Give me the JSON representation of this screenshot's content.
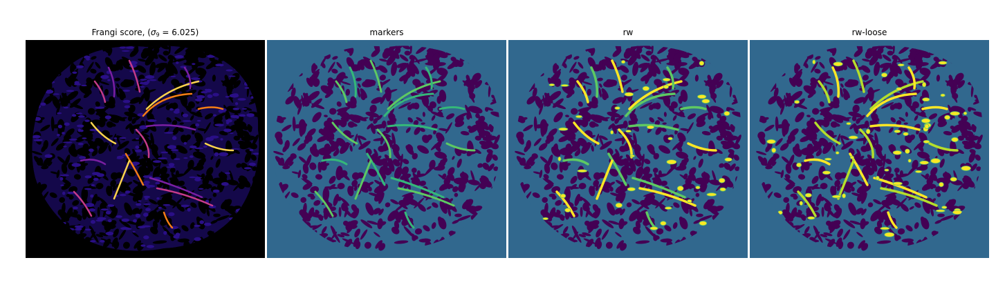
{
  "figure": {
    "panels": [
      {
        "id": "frangi",
        "title_prefix": "Frangi score, (",
        "title_sigma": "σ",
        "title_sub": "9",
        "title_suffix": " = 6.025)",
        "background": "#000000",
        "blob_fill": "#2a0f87",
        "vessel_colors": [
          "#7a1fa2",
          "#c53b8a",
          "#f57d15",
          "#fcd34d"
        ]
      },
      {
        "id": "markers",
        "title": "markers",
        "background": "#31688e",
        "blob_fill": "#440154",
        "vessel_colors": [
          "#35b779",
          "#5ec962"
        ]
      },
      {
        "id": "rw",
        "title": "rw",
        "background": "#31688e",
        "blob_fill": "#440154",
        "vessel_colors": [
          "#5ec962",
          "#fde725"
        ]
      },
      {
        "id": "rw-loose",
        "title": "rw-loose",
        "background": "#31688e",
        "blob_fill": "#440154",
        "vessel_colors": [
          "#fde725",
          "#b5de2b"
        ]
      }
    ]
  }
}
